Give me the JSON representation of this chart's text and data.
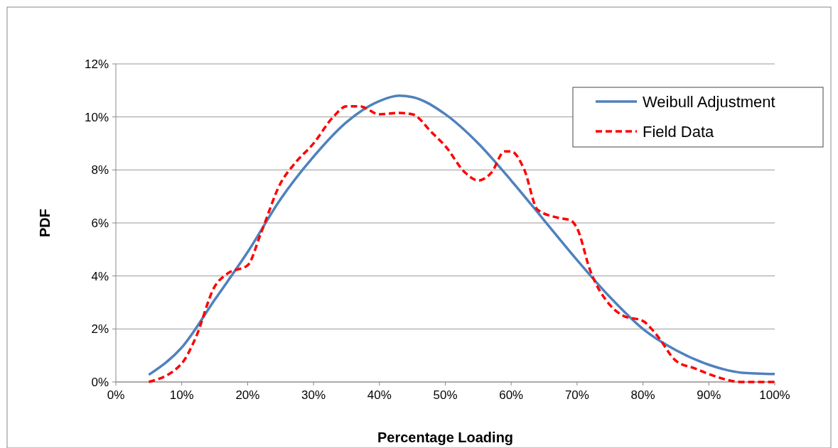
{
  "chart_data": {
    "type": "line",
    "xlabel": "Percentage Loading",
    "ylabel": "PDF",
    "xlim": [
      0,
      100
    ],
    "ylim": [
      0,
      12
    ],
    "xticks": [
      {
        "value": 0,
        "label": "0%"
      },
      {
        "value": 10,
        "label": "10%"
      },
      {
        "value": 20,
        "label": "20%"
      },
      {
        "value": 30,
        "label": "30%"
      },
      {
        "value": 40,
        "label": "40%"
      },
      {
        "value": 50,
        "label": "50%"
      },
      {
        "value": 60,
        "label": "60%"
      },
      {
        "value": 70,
        "label": "70%"
      },
      {
        "value": 80,
        "label": "80%"
      },
      {
        "value": 90,
        "label": "90%"
      },
      {
        "value": 100,
        "label": "100%"
      }
    ],
    "yticks": [
      {
        "value": 0,
        "label": "0%"
      },
      {
        "value": 2,
        "label": "2%"
      },
      {
        "value": 4,
        "label": "4%"
      },
      {
        "value": 6,
        "label": "6%"
      },
      {
        "value": 8,
        "label": "8%"
      },
      {
        "value": 10,
        "label": "10%"
      },
      {
        "value": 12,
        "label": "12%"
      }
    ],
    "grid": "y",
    "legend": "top right",
    "series": [
      {
        "name": "Weibull Adjustment",
        "color": "#4f81bd",
        "line_style": "solid",
        "x": [
          5,
          10,
          15,
          20,
          25,
          30,
          35,
          40,
          43,
          45,
          50,
          55,
          60,
          65,
          70,
          75,
          80,
          85,
          90,
          95,
          100
        ],
        "values": [
          0.27,
          1.3,
          3.1,
          4.9,
          6.9,
          8.5,
          9.8,
          10.6,
          10.8,
          10.75,
          10.1,
          9.0,
          7.6,
          6.1,
          4.6,
          3.2,
          2.0,
          1.2,
          0.65,
          0.35,
          0.3
        ]
      },
      {
        "name": "Field Data",
        "color": "#ff0000",
        "line_style": "dashed",
        "x": [
          5,
          10,
          12,
          15,
          17,
          20,
          22,
          25,
          27,
          30,
          33,
          35,
          37,
          40,
          43,
          45,
          48,
          50,
          53,
          55,
          57,
          59,
          60,
          62,
          64,
          67,
          69,
          70,
          72,
          75,
          77,
          80,
          82,
          85,
          88,
          90,
          95,
          100
        ],
        "values": [
          0,
          0.7,
          1.6,
          3.6,
          4.1,
          4.4,
          5.6,
          7.5,
          8.2,
          9.0,
          10.0,
          10.4,
          10.4,
          10.1,
          10.15,
          10.1,
          9.4,
          8.9,
          7.9,
          7.6,
          7.9,
          8.7,
          8.7,
          8.0,
          6.5,
          6.2,
          6.1,
          5.8,
          4.2,
          2.9,
          2.5,
          2.3,
          1.8,
          0.8,
          0.5,
          0.3,
          0,
          0
        ]
      }
    ]
  }
}
